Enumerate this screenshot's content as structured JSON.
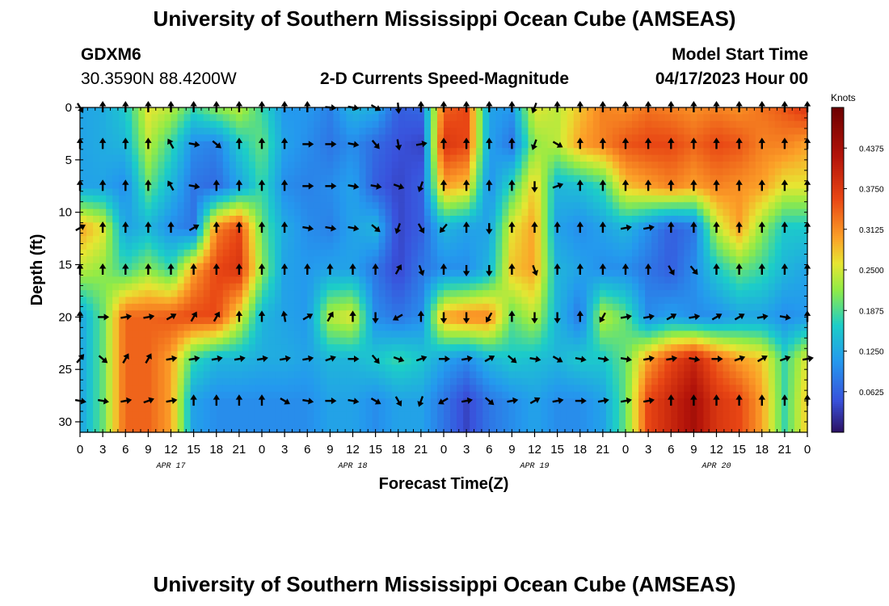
{
  "header": {
    "title_top": "University of Southern Mississippi Ocean Cube (AMSEAS)",
    "title_bottom": "University of Southern Mississippi Ocean Cube (AMSEAS)",
    "station_id": "GDXM6",
    "station_coords": "30.3590N  88.4200W",
    "plot_title": "2-D Currents Speed-Magnitude",
    "model_label": "Model Start Time",
    "model_time": "04/17/2023 Hour 00"
  },
  "chart_data": {
    "type": "heatmap",
    "title": "2-D Currents Speed-Magnitude",
    "xlabel": "Forecast Time(Z)",
    "ylabel": "Depth (ft)",
    "colorbar_label": "Knots",
    "colorbar_ticks": [
      "0.4375",
      "0.3750",
      "0.3125",
      "0.2500",
      "0.1875",
      "0.1250",
      "0.0625"
    ],
    "colorbar_values": [
      0.4375,
      0.375,
      0.3125,
      0.25,
      0.1875,
      0.125,
      0.0625
    ],
    "clim": [
      0,
      0.5
    ],
    "xlim": [
      0,
      96
    ],
    "ylim": [
      0,
      31
    ],
    "y_ticks": [
      0,
      5,
      10,
      15,
      20,
      25,
      30
    ],
    "y_tick_labels": [
      "0",
      "5",
      "10",
      "15",
      "20",
      "25",
      "30"
    ],
    "x_ticks": [
      0,
      3,
      6,
      9,
      12,
      15,
      18,
      21,
      24,
      27,
      30,
      33,
      36,
      39,
      42,
      45,
      48,
      51,
      54,
      57,
      60,
      63,
      66,
      69,
      72,
      75,
      78,
      81,
      84,
      87,
      90,
      93,
      96
    ],
    "x_tick_labels": [
      "0",
      "3",
      "6",
      "9",
      "12",
      "15",
      "18",
      "21",
      "0",
      "3",
      "6",
      "9",
      "12",
      "15",
      "18",
      "21",
      "0",
      "3",
      "6",
      "9",
      "12",
      "15",
      "18",
      "21",
      "0",
      "3",
      "6",
      "9",
      "12",
      "15",
      "18",
      "21",
      "0"
    ],
    "date_labels": [
      {
        "label": "APR 17",
        "hour": 12
      },
      {
        "label": "APR 18",
        "hour": 36
      },
      {
        "label": "APR 19",
        "hour": 60
      },
      {
        "label": "APR 20",
        "hour": 84
      }
    ],
    "depths_ft": [
      0,
      3.5,
      7.5,
      11.5,
      15.5,
      20,
      24,
      28
    ],
    "hours": [
      0,
      3,
      6,
      9,
      12,
      15,
      18,
      21,
      24,
      27,
      30,
      33,
      36,
      39,
      42,
      45,
      48,
      51,
      54,
      57,
      60,
      63,
      66,
      69,
      72,
      75,
      78,
      81,
      84,
      87,
      90,
      93,
      96
    ],
    "speed": [
      [
        0.12,
        0.13,
        0.16,
        0.26,
        0.24,
        0.18,
        0.22,
        0.24,
        0.18,
        0.11,
        0.11,
        0.09,
        0.14,
        0.13,
        0.06,
        0.07,
        0.34,
        0.36,
        0.12,
        0.11,
        0.26,
        0.24,
        0.28,
        0.32,
        0.31,
        0.33,
        0.32,
        0.31,
        0.32,
        0.31,
        0.33,
        0.35,
        0.38
      ],
      [
        0.12,
        0.13,
        0.14,
        0.24,
        0.18,
        0.1,
        0.09,
        0.16,
        0.2,
        0.12,
        0.1,
        0.08,
        0.1,
        0.07,
        0.05,
        0.04,
        0.38,
        0.36,
        0.12,
        0.08,
        0.22,
        0.24,
        0.3,
        0.32,
        0.35,
        0.36,
        0.36,
        0.34,
        0.36,
        0.35,
        0.32,
        0.32,
        0.3
      ],
      [
        0.12,
        0.12,
        0.1,
        0.2,
        0.14,
        0.08,
        0.07,
        0.12,
        0.18,
        0.1,
        0.09,
        0.1,
        0.12,
        0.06,
        0.04,
        0.06,
        0.3,
        0.28,
        0.1,
        0.18,
        0.28,
        0.14,
        0.15,
        0.18,
        0.28,
        0.3,
        0.32,
        0.3,
        0.32,
        0.31,
        0.3,
        0.26,
        0.26
      ],
      [
        0.3,
        0.26,
        0.12,
        0.14,
        0.1,
        0.08,
        0.32,
        0.36,
        0.2,
        0.13,
        0.1,
        0.09,
        0.12,
        0.14,
        0.04,
        0.06,
        0.14,
        0.12,
        0.12,
        0.26,
        0.3,
        0.12,
        0.1,
        0.12,
        0.14,
        0.1,
        0.06,
        0.08,
        0.24,
        0.3,
        0.22,
        0.16,
        0.16
      ],
      [
        0.24,
        0.22,
        0.18,
        0.22,
        0.18,
        0.3,
        0.36,
        0.38,
        0.22,
        0.12,
        0.11,
        0.12,
        0.12,
        0.08,
        0.04,
        0.08,
        0.1,
        0.1,
        0.14,
        0.28,
        0.3,
        0.14,
        0.12,
        0.1,
        0.1,
        0.08,
        0.06,
        0.1,
        0.16,
        0.2,
        0.18,
        0.14,
        0.12
      ],
      [
        0.12,
        0.2,
        0.34,
        0.34,
        0.35,
        0.36,
        0.36,
        0.26,
        0.14,
        0.12,
        0.11,
        0.24,
        0.26,
        0.1,
        0.08,
        0.1,
        0.3,
        0.32,
        0.32,
        0.2,
        0.24,
        0.14,
        0.08,
        0.24,
        0.2,
        0.1,
        0.12,
        0.1,
        0.1,
        0.12,
        0.12,
        0.1,
        0.11
      ],
      [
        0.12,
        0.2,
        0.34,
        0.34,
        0.3,
        0.18,
        0.14,
        0.14,
        0.13,
        0.13,
        0.12,
        0.14,
        0.14,
        0.16,
        0.18,
        0.16,
        0.12,
        0.1,
        0.14,
        0.16,
        0.15,
        0.14,
        0.16,
        0.16,
        0.2,
        0.3,
        0.36,
        0.4,
        0.34,
        0.3,
        0.28,
        0.18,
        0.26
      ],
      [
        0.12,
        0.2,
        0.34,
        0.34,
        0.3,
        0.12,
        0.1,
        0.1,
        0.1,
        0.1,
        0.1,
        0.12,
        0.12,
        0.1,
        0.12,
        0.12,
        0.08,
        0.04,
        0.08,
        0.1,
        0.12,
        0.1,
        0.1,
        0.12,
        0.2,
        0.36,
        0.4,
        0.44,
        0.38,
        0.36,
        0.3,
        0.18,
        0.28
      ]
    ],
    "arrow_depths_ft": [
      0,
      3.5,
      7.5,
      11.5,
      15.5,
      20,
      24,
      28
    ],
    "arrow_hours": [
      0,
      3,
      6,
      9,
      12,
      15,
      18,
      21,
      24,
      27,
      30,
      33,
      36,
      39,
      42,
      45,
      48,
      51,
      54,
      57,
      60,
      63,
      66,
      69,
      72,
      75,
      78,
      81,
      84,
      87,
      90,
      93,
      96
    ],
    "direction_deg": [
      [
        150,
        0,
        0,
        0,
        0,
        0,
        0,
        0,
        0,
        0,
        0,
        95,
        100,
        120,
        175,
        0,
        0,
        0,
        0,
        0,
        200,
        0,
        0,
        0,
        0,
        0,
        0,
        0,
        0,
        0,
        0,
        0,
        0
      ],
      [
        0,
        0,
        0,
        0,
        330,
        100,
        130,
        0,
        0,
        0,
        90,
        90,
        100,
        140,
        170,
        80,
        0,
        0,
        0,
        0,
        200,
        120,
        0,
        0,
        0,
        0,
        0,
        0,
        0,
        0,
        0,
        0,
        0
      ],
      [
        0,
        0,
        0,
        0,
        330,
        100,
        0,
        0,
        0,
        0,
        90,
        90,
        100,
        100,
        110,
        200,
        0,
        0,
        0,
        0,
        180,
        70,
        0,
        0,
        0,
        0,
        0,
        0,
        0,
        0,
        0,
        0,
        0
      ],
      [
        60,
        0,
        0,
        0,
        0,
        60,
        0,
        0,
        0,
        0,
        100,
        100,
        100,
        130,
        200,
        150,
        220,
        0,
        180,
        0,
        0,
        0,
        0,
        0,
        80,
        80,
        0,
        0,
        0,
        0,
        0,
        0,
        0
      ],
      [
        0,
        0,
        0,
        0,
        0,
        0,
        0,
        0,
        0,
        0,
        0,
        0,
        0,
        0,
        30,
        160,
        0,
        180,
        180,
        0,
        160,
        0,
        0,
        0,
        0,
        0,
        150,
        140,
        0,
        0,
        0,
        0,
        0
      ],
      [
        0,
        90,
        80,
        80,
        60,
        30,
        30,
        0,
        0,
        350,
        60,
        30,
        0,
        180,
        240,
        0,
        180,
        180,
        210,
        0,
        180,
        180,
        0,
        210,
        80,
        80,
        60,
        80,
        60,
        60,
        80,
        100,
        0
      ],
      [
        40,
        130,
        30,
        30,
        80,
        80,
        80,
        80,
        80,
        80,
        80,
        70,
        90,
        140,
        110,
        70,
        90,
        80,
        60,
        130,
        100,
        120,
        100,
        100,
        100,
        80,
        80,
        100,
        90,
        70,
        60,
        70,
        80
      ],
      [
        100,
        100,
        80,
        70,
        80,
        0,
        0,
        0,
        0,
        120,
        100,
        90,
        100,
        120,
        150,
        200,
        240,
        80,
        130,
        80,
        60,
        80,
        90,
        80,
        80,
        80,
        0,
        0,
        0,
        0,
        0,
        0,
        0
      ]
    ]
  }
}
